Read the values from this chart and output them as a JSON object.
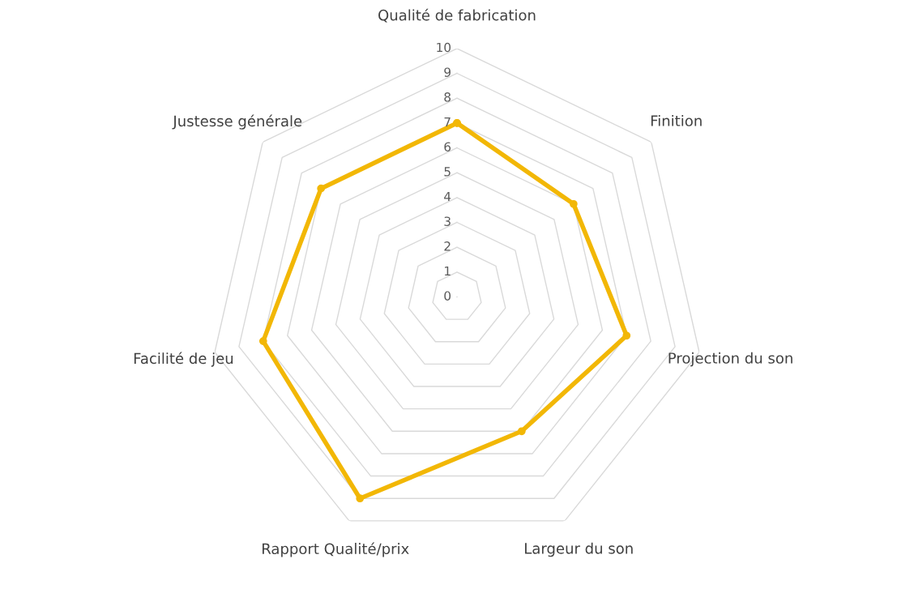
{
  "chart_data": {
    "type": "radar",
    "categories": [
      "Qualité de fabrication",
      "Finition",
      "Projection du son",
      "Largeur du son",
      "Rapport Qualité/prix",
      "Facilité de jeu",
      "Justesse générale"
    ],
    "series": [
      {
        "color": "#f2b705",
        "values": [
          7,
          6,
          7,
          6,
          9,
          8,
          7
        ]
      }
    ],
    "ylim": [
      0,
      10
    ],
    "yticks": [
      0,
      1,
      2,
      3,
      4,
      5,
      6,
      7,
      8,
      9,
      10
    ],
    "grid": true,
    "marker": "circle",
    "line_style": "solid"
  }
}
